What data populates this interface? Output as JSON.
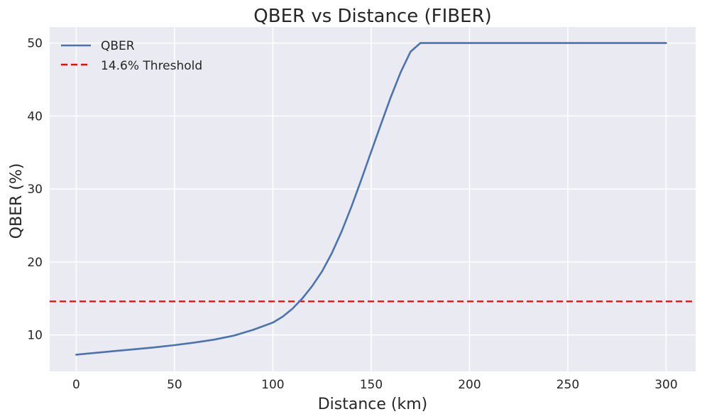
{
  "chart_data": {
    "type": "line",
    "title": "QBER vs Distance (FIBER)",
    "xlabel": "Distance (km)",
    "ylabel": "QBER (%)",
    "xlim": [
      -13.5,
      315
    ],
    "ylim": [
      5.0,
      52.2
    ],
    "xticks": [
      0,
      50,
      100,
      150,
      200,
      250,
      300
    ],
    "yticks": [
      10,
      20,
      30,
      40,
      50
    ],
    "grid": true,
    "legend_position": "top-left",
    "series": [
      {
        "name": "QBER",
        "color": "#4c72b0",
        "x": [
          0,
          10,
          20,
          30,
          40,
          50,
          60,
          70,
          80,
          90,
          100,
          105,
          110,
          115,
          120,
          125,
          130,
          135,
          140,
          145,
          150,
          155,
          160,
          165,
          170,
          175,
          180,
          185,
          190,
          200,
          220,
          250,
          280,
          300
        ],
        "y": [
          7.3,
          7.55,
          7.8,
          8.05,
          8.3,
          8.6,
          8.95,
          9.35,
          9.9,
          10.7,
          11.7,
          12.5,
          13.6,
          15.0,
          16.7,
          18.7,
          21.2,
          24.2,
          27.6,
          31.3,
          35.1,
          38.9,
          42.6,
          46.0,
          48.8,
          50.0,
          50.0,
          50.0,
          50.0,
          50.0,
          50.0,
          50.0,
          50.0,
          50.0
        ]
      },
      {
        "name": "14.6% Threshold",
        "color": "#ff0000",
        "style": "dashed",
        "y_constant": 14.6
      }
    ]
  }
}
